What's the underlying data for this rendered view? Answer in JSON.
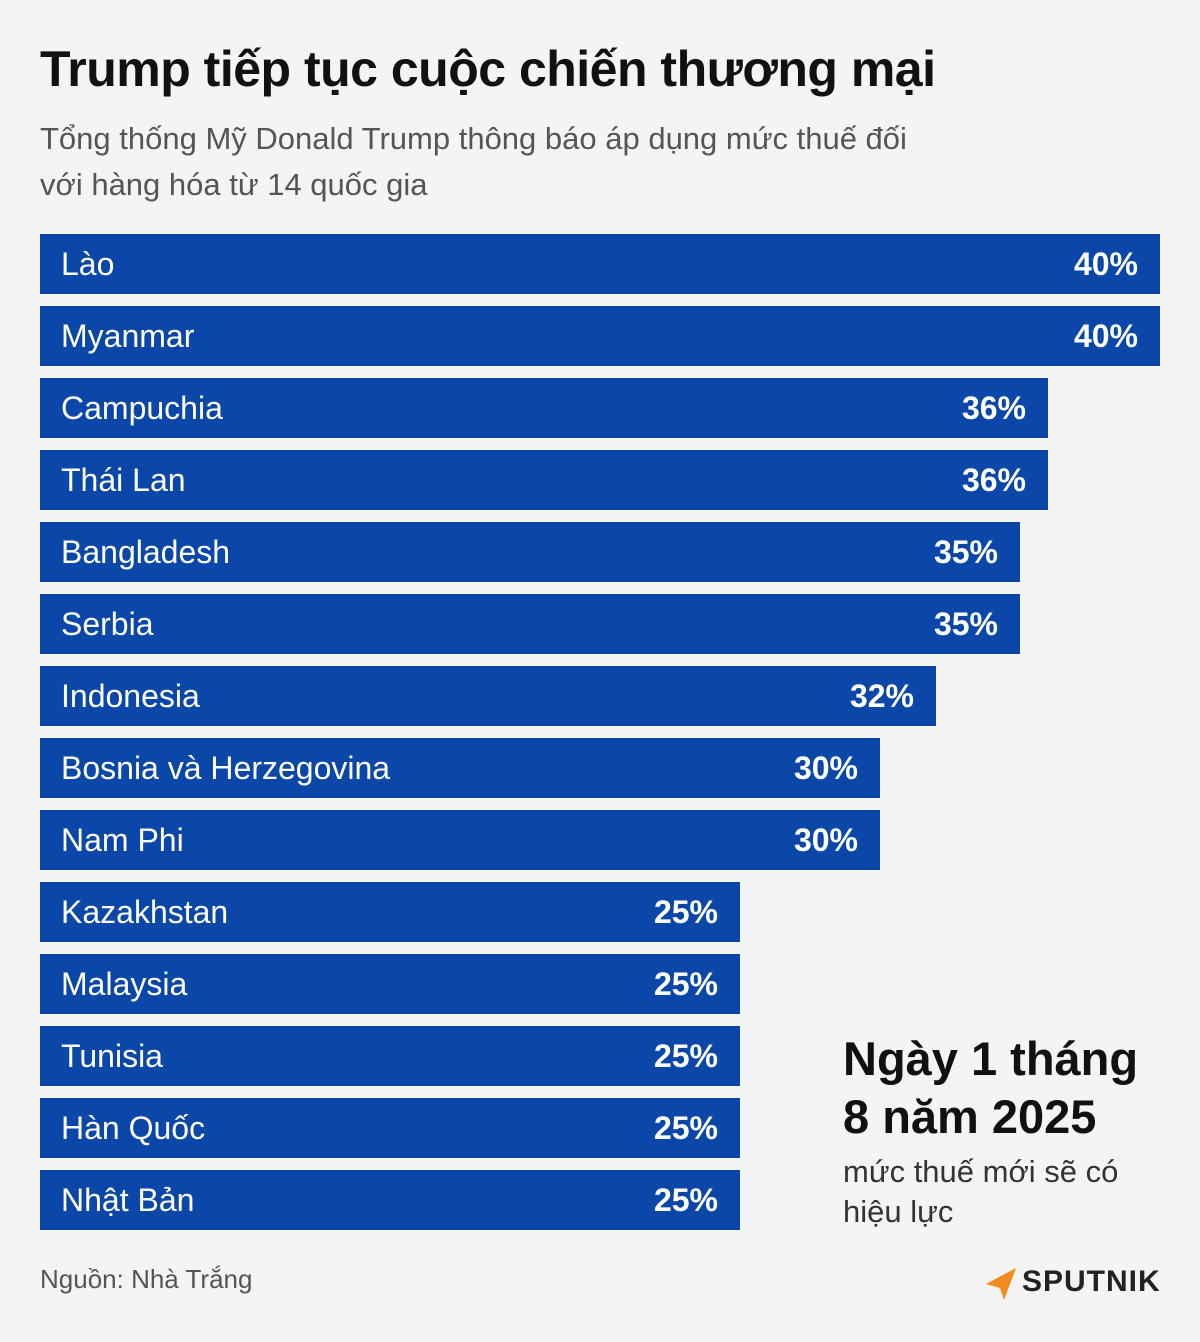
{
  "title": "Trump tiếp tục cuộc chiến thương mại",
  "subtitle": "Tổng thống Mỹ Donald Trump thông báo áp dụng mức thuế đối với hàng hóa từ 14 quốc gia",
  "colors": {
    "bar": "#0a47a8",
    "logo_accent": "#f28c1c"
  },
  "chart_data": {
    "type": "bar",
    "orientation": "horizontal",
    "title": "Trump tiếp tục cuộc chiến thương mại",
    "xlabel": "",
    "ylabel": "",
    "xlim": [
      0,
      40
    ],
    "unit": "%",
    "categories": [
      "Lào",
      "Myanmar",
      "Campuchia",
      "Thái Lan",
      "Bangladesh",
      "Serbia",
      "Indonesia",
      "Bosnia và Herzegovina",
      "Nam Phi",
      "Kazakhstan",
      "Malaysia",
      "Tunisia",
      "Hàn Quốc",
      "Nhật Bản"
    ],
    "values": [
      40,
      40,
      36,
      36,
      35,
      35,
      32,
      30,
      30,
      25,
      25,
      25,
      25,
      25
    ],
    "value_labels": [
      "40%",
      "40%",
      "36%",
      "36%",
      "35%",
      "35%",
      "32%",
      "30%",
      "30%",
      "25%",
      "25%",
      "25%",
      "25%",
      "25%"
    ]
  },
  "effective": {
    "heading": "Ngày 1 tháng 8 năm 2025",
    "note": "mức thuế mới sẽ có hiệu lực"
  },
  "source": "Nguồn: Nhà Trắng",
  "logo": {
    "text": "SPUTNIK",
    "icon": "sputnik-logo-icon"
  }
}
